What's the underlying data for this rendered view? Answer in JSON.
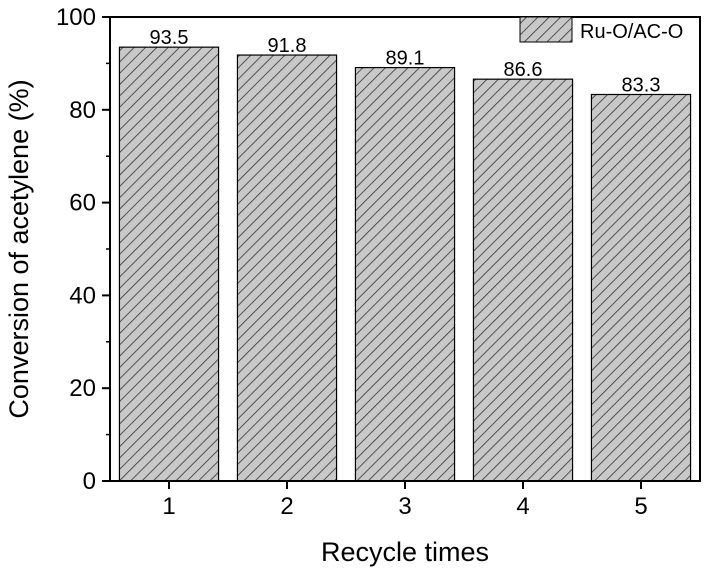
{
  "chart_data": {
    "type": "bar",
    "categories": [
      "1",
      "2",
      "3",
      "4",
      "5"
    ],
    "series": [
      {
        "name": "Ru-O/AC-O",
        "values": [
          93.5,
          91.8,
          89.1,
          86.6,
          83.3
        ]
      }
    ],
    "data_labels": [
      "93.5",
      "91.8",
      "89.1",
      "86.6",
      "83.3"
    ],
    "xlabel": "Recycle times",
    "ylabel": "Conversion of acetylene (%)",
    "ylim": [
      0,
      100
    ],
    "yticks": [
      0,
      20,
      40,
      60,
      80,
      100
    ],
    "grid": false,
    "legend": "top-right",
    "bar_fill": "#c8c8c8",
    "hatch_color": "#333333",
    "pattern": "diagonal-hatch"
  }
}
